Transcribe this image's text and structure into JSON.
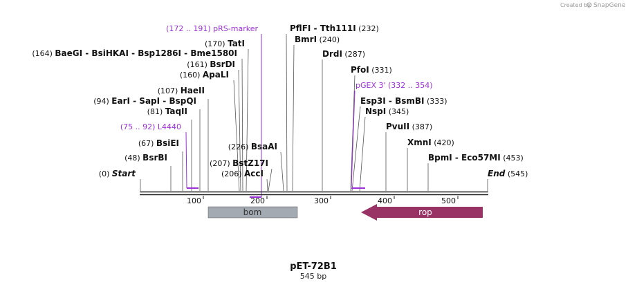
{
  "credit": {
    "prefix": "Created by",
    "brand": "SnapGene",
    "icon": "snapgene-logo-icon"
  },
  "map": {
    "name": "pET-72B1",
    "length_label": "545 bp",
    "ticks": [
      "100",
      "200",
      "300",
      "400",
      "500"
    ],
    "ends": [
      {
        "name": "Start",
        "pos": "(0)"
      },
      {
        "name": "End",
        "pos": "(545)"
      }
    ],
    "sites": [
      {
        "label_parts": [
          "BsrBI"
        ],
        "pos": "(48)"
      },
      {
        "label_parts": [
          "BsiEI"
        ],
        "pos": "(67)"
      },
      {
        "label_parts": [
          "TaqII"
        ],
        "pos": "(81)"
      },
      {
        "label_parts": [
          "EarI",
          "SapI",
          "BspQI"
        ],
        "pos": "(94)"
      },
      {
        "label_parts": [
          "HaeII"
        ],
        "pos": "(107)"
      },
      {
        "label_parts": [
          "ApaLI"
        ],
        "pos": "(160)"
      },
      {
        "label_parts": [
          "BsrDI"
        ],
        "pos": "(161)"
      },
      {
        "label_parts": [
          "BaeGI",
          "BsiHKAI",
          "Bsp1286I",
          "Bme1580I"
        ],
        "pos": "(164)"
      },
      {
        "label_parts": [
          "TatI"
        ],
        "pos": "(170)"
      },
      {
        "label_parts": [
          "AccI"
        ],
        "pos": "(206)"
      },
      {
        "label_parts": [
          "BstZ17I"
        ],
        "pos": "(207)"
      },
      {
        "label_parts": [
          "BsaAI"
        ],
        "pos": "(226)"
      },
      {
        "label_parts": [
          "PflFI",
          "Tth111I"
        ],
        "pos": "(232)"
      },
      {
        "label_parts": [
          "BmrI"
        ],
        "pos": "(240)"
      },
      {
        "label_parts": [
          "DrdI"
        ],
        "pos": "(287)"
      },
      {
        "label_parts": [
          "PfoI"
        ],
        "pos": "(331)"
      },
      {
        "label_parts": [
          "Esp3I",
          "BsmBI"
        ],
        "pos": "(333)"
      },
      {
        "label_parts": [
          "NspI"
        ],
        "pos": "(345)"
      },
      {
        "label_parts": [
          "PvuII"
        ],
        "pos": "(387)"
      },
      {
        "label_parts": [
          "XmnI"
        ],
        "pos": "(420)"
      },
      {
        "label_parts": [
          "BpmI",
          "Eco57MI"
        ],
        "pos": "(453)"
      }
    ],
    "primers": [
      {
        "name": "L4440",
        "range": "(75 .. 92)"
      },
      {
        "name": "pRS-marker",
        "range": "(172 .. 191)"
      },
      {
        "name": "pGEX 3'",
        "range": "(332 .. 354)"
      }
    ],
    "features": [
      {
        "name": "bom",
        "color": "#a3aab1",
        "direction": "none"
      },
      {
        "name": "rop",
        "color": "#993366",
        "direction": "reverse"
      }
    ],
    "colors": {
      "primer": "#9b30d9",
      "line": "#555555",
      "backbone": "#222222"
    }
  }
}
